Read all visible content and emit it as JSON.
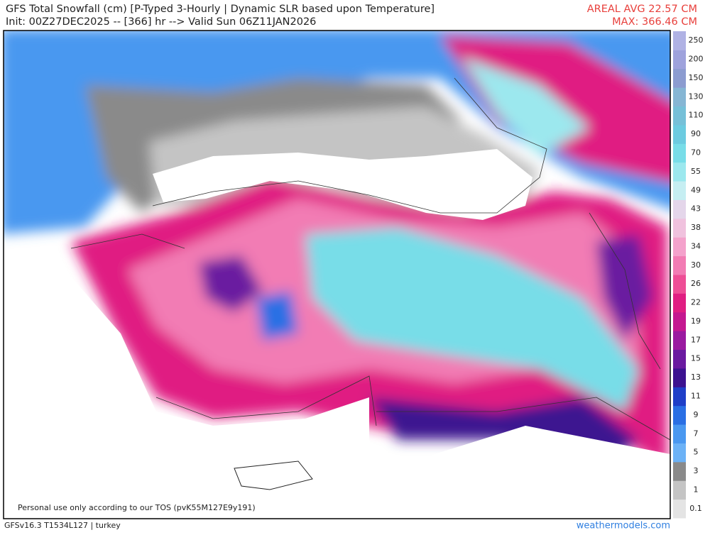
{
  "header": {
    "title": "GFS Total Snowfall (cm) [P-Typed 3-Hourly | Dynamic SLR based upon Temperature]",
    "subtitle": "Init: 00Z27DEC2025 -- [366] hr --> Valid Sun 06Z11JAN2026",
    "areal_avg": "AREAL AVG 22.57 CM",
    "max": "MAX: 366.46 CM"
  },
  "legend": {
    "labels": [
      0.1,
      1,
      3,
      5,
      7,
      9,
      11,
      13,
      15,
      17,
      19,
      22,
      26,
      30,
      34,
      38,
      43,
      49,
      55,
      70,
      90,
      110,
      130,
      150,
      200,
      250
    ],
    "colors": [
      "#e4e4e4",
      "#c4c4c4",
      "#8a8a8a",
      "#6cb2f6",
      "#4a98f0",
      "#2a6fe4",
      "#1f3fc8",
      "#3c1290",
      "#6a1aa0",
      "#9a1aa0",
      "#c41890",
      "#e01e82",
      "#ee4e96",
      "#f27cb4",
      "#f4a2cc",
      "#f0c2de",
      "#e4d6ea",
      "#c6eef2",
      "#9ce8ee",
      "#78dde8",
      "#6ccbe0",
      "#76c0d8",
      "#86b6d4",
      "#8c9cd0",
      "#9ea2dc",
      "#b0b2e4"
    ]
  },
  "footer": {
    "disclaimer": "Personal use only according to our TOS (pvK55M127E9y191)",
    "model": "GFSv16.3 T1534L127 | turkey",
    "site": "weathermodels.com"
  }
}
